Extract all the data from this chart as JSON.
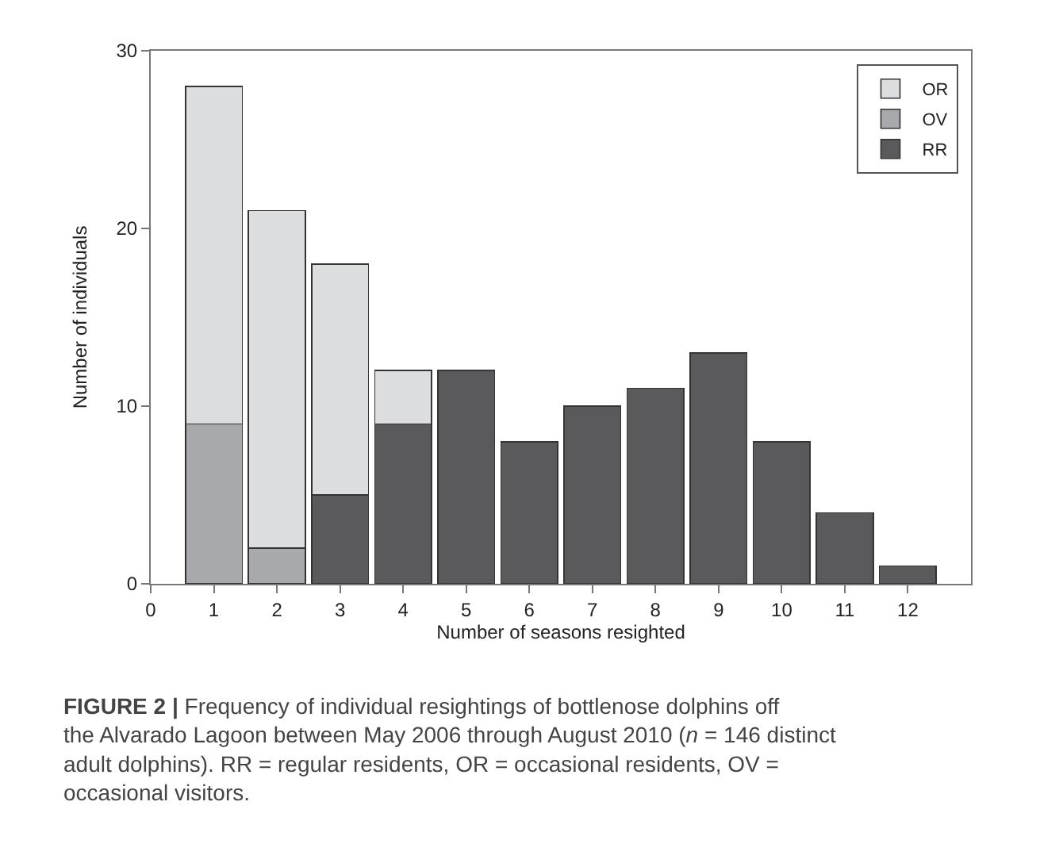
{
  "chart_data": {
    "type": "bar",
    "stacked": true,
    "xlabel": "Number of seasons resighted",
    "ylabel": "Number of individuals",
    "x": [
      1,
      2,
      3,
      4,
      5,
      6,
      7,
      8,
      9,
      10,
      11,
      12
    ],
    "series": [
      {
        "name": "RR",
        "color": "#5a5a5d",
        "values": [
          null,
          null,
          5,
          9,
          12,
          8,
          10,
          11,
          13,
          8,
          4,
          1
        ]
      },
      {
        "name": "OV",
        "color": "#a8a9ad",
        "values": [
          9,
          2,
          null,
          null,
          null,
          null,
          null,
          null,
          null,
          null,
          null,
          null
        ]
      },
      {
        "name": "OR",
        "color": "#dcdddf",
        "values": [
          19,
          19,
          13,
          3,
          null,
          null,
          null,
          null,
          null,
          null,
          null,
          null
        ]
      }
    ],
    "xlim": [
      0,
      13
    ],
    "xticks": [
      0,
      1,
      2,
      3,
      4,
      5,
      6,
      7,
      8,
      9,
      10,
      11,
      12
    ],
    "ylim": [
      0,
      30
    ],
    "yticks": [
      0,
      10,
      20,
      30
    ],
    "legend": "top right",
    "annotations": [
      "FIGURE 2 | Frequency of individual resightings of bottlenose dolphins off the Alvarado Lagoon between May 2006 through August 2010 (n = 146 distinct adult dolphins). RR = regular residents, OR = occasional residents, OV = occasional visitors."
    ]
  }
}
